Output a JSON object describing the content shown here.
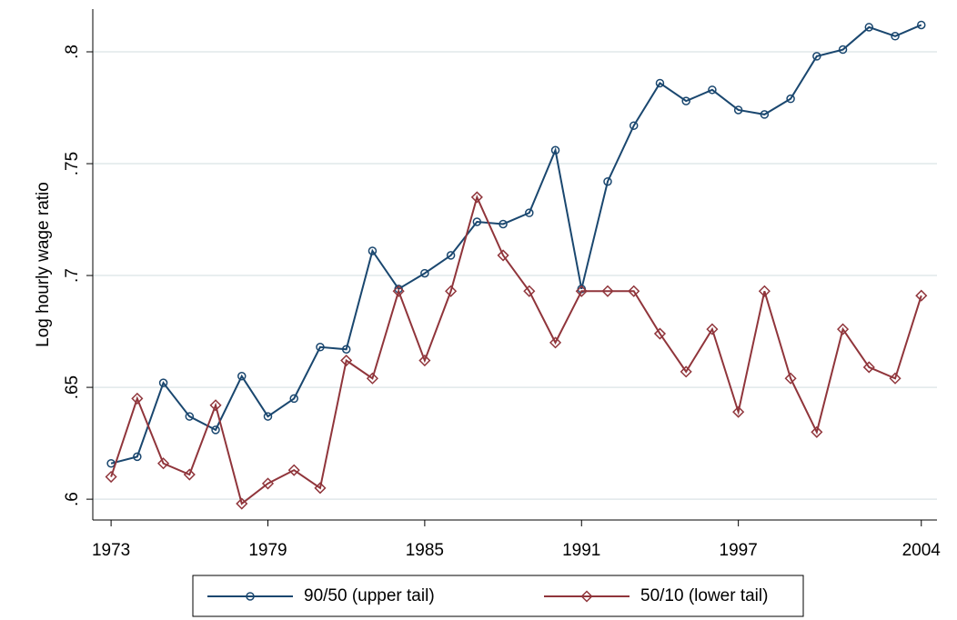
{
  "chart_data": {
    "type": "line",
    "y_label": "Log hourly wage ratio",
    "x": [
      1973,
      1974,
      1975,
      1976,
      1977,
      1978,
      1979,
      1980,
      1981,
      1982,
      1983,
      1984,
      1985,
      1986,
      1987,
      1988,
      1989,
      1990,
      1991,
      1992,
      1993,
      1994,
      1995,
      1996,
      1997,
      1998,
      1999,
      2000,
      2001,
      2002,
      2003,
      2004
    ],
    "series": [
      {
        "name": "90/50 (upper tail)",
        "color": "#1a476f",
        "marker": "circle",
        "values": [
          0.616,
          0.619,
          0.652,
          0.637,
          0.631,
          0.655,
          0.637,
          0.645,
          0.668,
          0.667,
          0.711,
          0.694,
          0.701,
          0.709,
          0.724,
          0.723,
          0.728,
          0.756,
          0.694,
          0.742,
          0.767,
          0.786,
          0.778,
          0.783,
          0.774,
          0.772,
          0.779,
          0.798,
          0.801,
          0.811,
          0.807,
          0.812
        ]
      },
      {
        "name": "50/10 (lower tail)",
        "color": "#90353b",
        "marker": "diamond",
        "values": [
          0.61,
          0.645,
          0.616,
          0.611,
          0.642,
          0.598,
          0.607,
          0.613,
          0.605,
          0.662,
          0.654,
          0.693,
          0.662,
          0.693,
          0.735,
          0.709,
          0.693,
          0.67,
          0.693,
          0.693,
          0.693,
          0.674,
          0.657,
          0.676,
          0.639,
          0.693,
          0.654,
          0.63,
          0.676,
          0.659,
          0.654,
          0.691
        ]
      }
    ],
    "xlim": [
      1972.3,
      2004.6
    ],
    "xticks": [
      1973,
      1979,
      1985,
      1991,
      1997,
      2004
    ],
    "ylim": [
      0.5907,
      0.8191
    ],
    "yticks": [
      {
        "value": 0.6,
        "label": ".6"
      },
      {
        "value": 0.65,
        "label": ".65"
      },
      {
        "value": 0.7,
        "label": ".7"
      },
      {
        "value": 0.75,
        "label": ".75"
      },
      {
        "value": 0.8,
        "label": ".8"
      }
    ],
    "grid": true
  }
}
